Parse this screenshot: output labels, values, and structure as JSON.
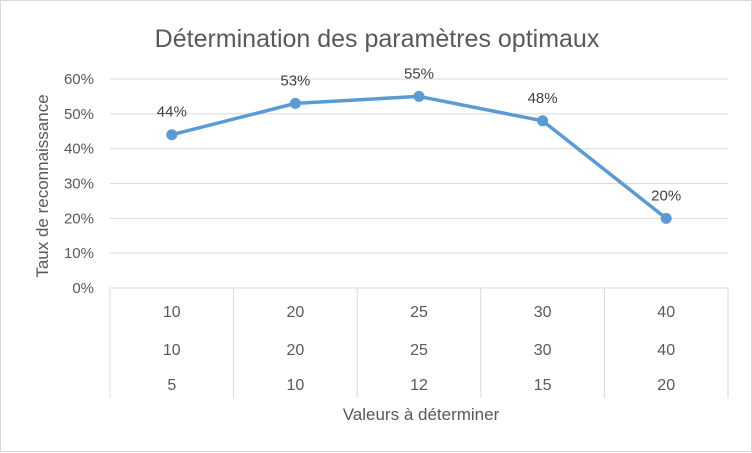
{
  "chart_data": {
    "type": "line",
    "title": "Détermination des paramètres optimaux",
    "xlabel": "Valeurs à déterminer",
    "ylabel": "Taux de reconnaissance",
    "ylim": [
      0,
      0.6
    ],
    "y_ticks": [
      "0%",
      "10%",
      "20%",
      "30%",
      "40%",
      "50%",
      "60%"
    ],
    "categories": [
      [
        "10",
        "10",
        "5"
      ],
      [
        "20",
        "20",
        "10"
      ],
      [
        "25",
        "25",
        "12"
      ],
      [
        "30",
        "30",
        "15"
      ],
      [
        "40",
        "40",
        "20"
      ]
    ],
    "series": [
      {
        "values": [
          0.44,
          0.53,
          0.55,
          0.48,
          0.2
        ]
      }
    ],
    "data_labels": [
      "44%",
      "53%",
      "55%",
      "48%",
      "20%"
    ],
    "grid": true,
    "legend": "none",
    "colors": {
      "line": "#5b9bd5",
      "grid": "#d9d9d9",
      "text": "#595959"
    }
  }
}
